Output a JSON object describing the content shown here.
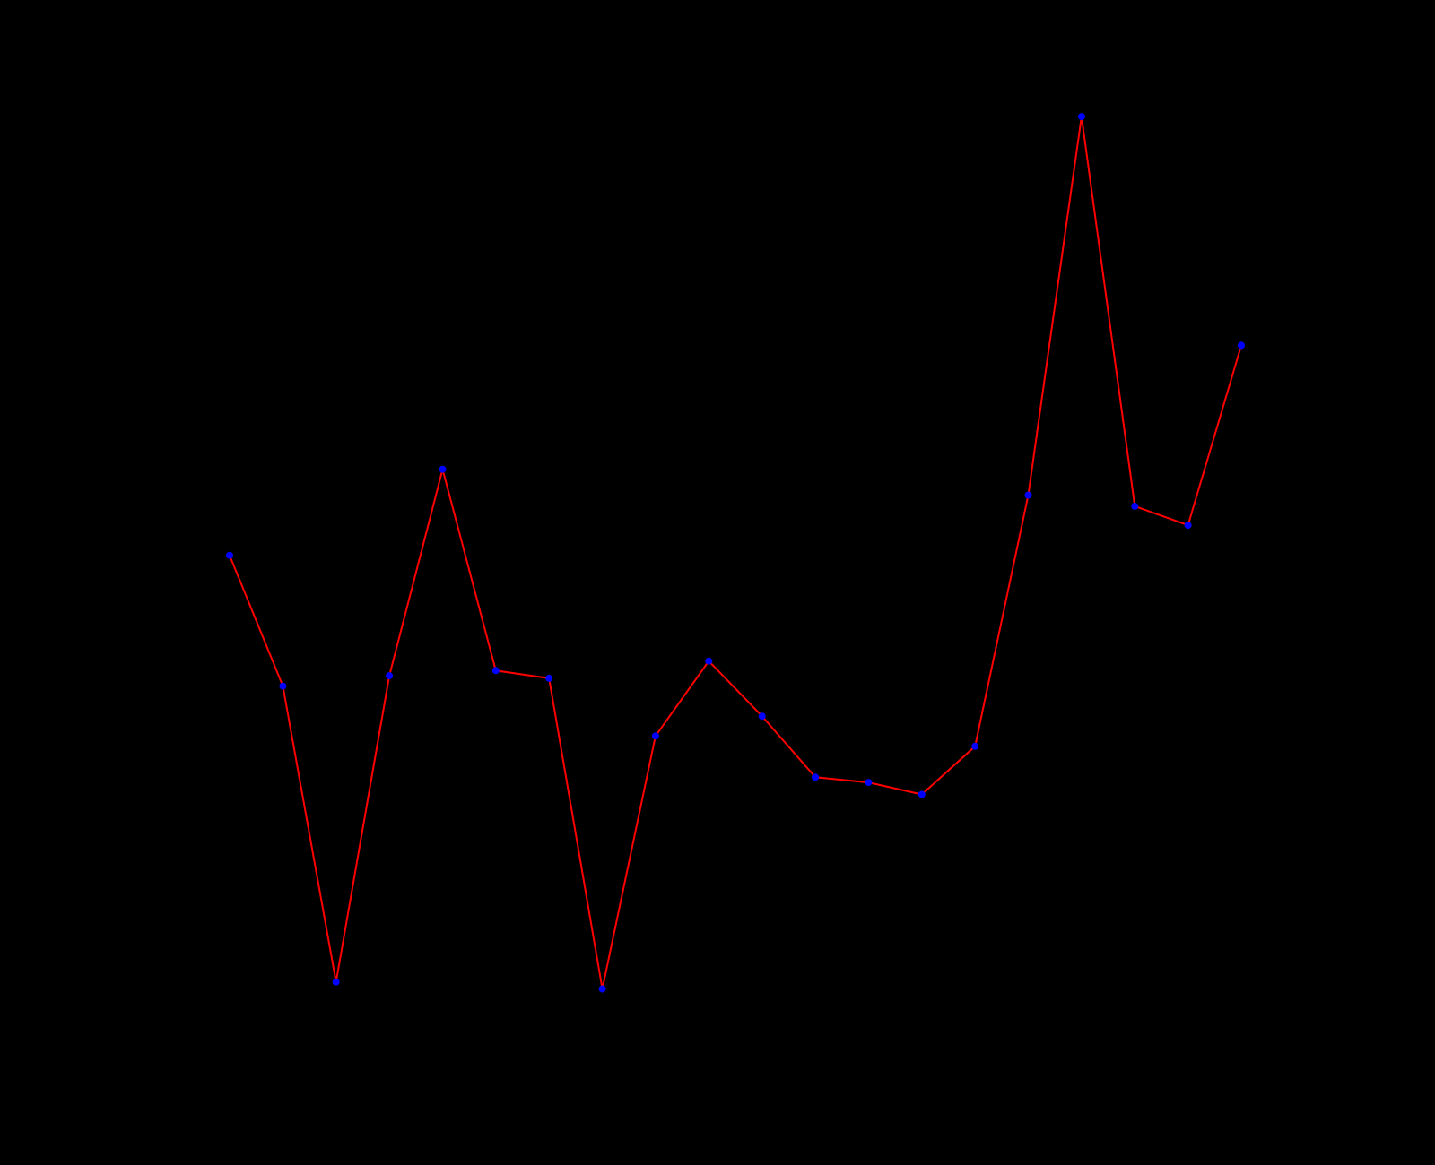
{
  "chart_data": {
    "type": "line",
    "title": "",
    "xlabel": "",
    "ylabel": "",
    "grid": false,
    "legend": "none",
    "x": [
      1,
      2,
      3,
      4,
      5,
      6,
      7,
      8,
      9,
      10,
      11,
      12,
      13,
      14,
      15,
      16,
      17,
      18,
      19,
      20
    ],
    "series": [
      {
        "values": [
          57.9,
          42.7,
          8.3,
          43.9,
          67.9,
          44.5,
          43.6,
          7.5,
          36.9,
          45.6,
          39.2,
          32.1,
          31.5,
          30.1,
          35.7,
          64.9,
          108.9,
          63.6,
          61.4,
          82.3
        ],
        "line_color": "#ff0000",
        "marker_color": "#0000ff"
      }
    ],
    "xlim": [
      0,
      24
    ],
    "ylim": [
      0,
      120
    ]
  },
  "colors": {
    "background": "#000000",
    "line": "#ff0000",
    "marker": "#0000ff"
  }
}
